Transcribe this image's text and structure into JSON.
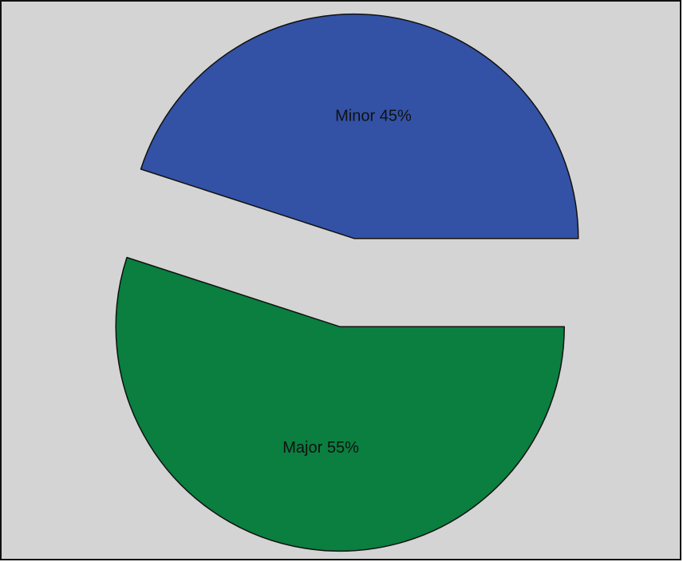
{
  "chart_data": {
    "type": "pie",
    "slices": [
      {
        "label": "Minor",
        "value": 45,
        "display": "Minor 45%",
        "color": "#3352a6"
      },
      {
        "label": "Major",
        "value": 55,
        "display": "Major 55%",
        "color": "#0a7f3f"
      }
    ],
    "start_angle_deg": 0,
    "direction": "counterclockwise",
    "exploded": true,
    "background_color": "#d4d4d4",
    "border_color": "#111111"
  }
}
